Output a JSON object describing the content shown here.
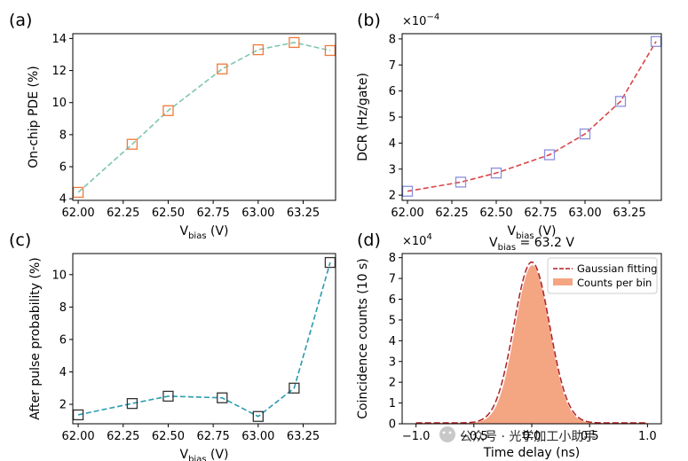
{
  "watermark": "公众号 · 光学加工小助手",
  "chart_data": [
    {
      "type": "line",
      "panel": "(a)",
      "title": "",
      "xlabel": "V",
      "xlabel_sub": "bias",
      "xlabel_unit": " (V)",
      "ylabel": "On-chip PDE (%)",
      "xlim": [
        61.97,
        63.43
      ],
      "ylim": [
        3.9,
        14.3
      ],
      "xticks": [
        62.0,
        62.25,
        62.5,
        62.75,
        63.0,
        63.25
      ],
      "xtick_labels": [
        "62.00",
        "62.25",
        "62.50",
        "62.75",
        "63.00",
        "63.25"
      ],
      "yticks": [
        4,
        6,
        8,
        10,
        12,
        14
      ],
      "ytick_labels": [
        "4",
        "6",
        "8",
        "10",
        "12",
        "14"
      ],
      "x": [
        62.0,
        62.3,
        62.5,
        62.8,
        63.0,
        63.2,
        63.4
      ],
      "y": [
        4.4,
        7.4,
        9.5,
        12.1,
        13.3,
        13.75,
        13.25
      ],
      "line_color": "#7fc6b0",
      "marker_color": "#f07a3a"
    },
    {
      "type": "line",
      "panel": "(b)",
      "title": "",
      "xlabel": "V",
      "xlabel_sub": "bias",
      "xlabel_unit": " (V)",
      "ylabel": "DCR (Hz/gate)",
      "offset_text": "×10",
      "offset_exp": "−4",
      "xlim": [
        61.97,
        63.43
      ],
      "ylim": [
        1.8,
        8.2
      ],
      "xticks": [
        62.0,
        62.25,
        62.5,
        62.75,
        63.0,
        63.25
      ],
      "xtick_labels": [
        "62.00",
        "62.25",
        "62.50",
        "62.75",
        "63.00",
        "63.25"
      ],
      "yticks": [
        2,
        3,
        4,
        5,
        6,
        7,
        8
      ],
      "ytick_labels": [
        "2",
        "3",
        "4",
        "5",
        "6",
        "7",
        "8"
      ],
      "x": [
        62.0,
        62.3,
        62.5,
        62.8,
        63.0,
        63.2,
        63.4
      ],
      "y": [
        2.15,
        2.5,
        2.85,
        3.55,
        4.35,
        5.6,
        7.9
      ],
      "line_color": "#d8474a",
      "marker_color": "#8a8fe0"
    },
    {
      "type": "line",
      "panel": "(c)",
      "title": "",
      "xlabel": "V",
      "xlabel_sub": "bias",
      "xlabel_unit": " (V)",
      "ylabel": "After pulse probability (%)",
      "xlim": [
        61.97,
        63.43
      ],
      "ylim": [
        0.8,
        11.3
      ],
      "xticks": [
        62.0,
        62.25,
        62.5,
        62.75,
        63.0,
        63.25
      ],
      "xtick_labels": [
        "62.00",
        "62.25",
        "62.50",
        "62.75",
        "63.00",
        "63.25"
      ],
      "yticks": [
        2,
        4,
        6,
        8,
        10
      ],
      "ytick_labels": [
        "2",
        "4",
        "6",
        "8",
        "10"
      ],
      "x": [
        62.0,
        62.3,
        62.5,
        62.8,
        63.0,
        63.2,
        63.4
      ],
      "y": [
        1.35,
        2.05,
        2.5,
        2.4,
        1.25,
        3.0,
        10.75
      ],
      "line_color": "#2a9bb0",
      "marker_color": "#333333"
    },
    {
      "type": "area",
      "panel": "(d)",
      "title": "V",
      "title_sub": "bias",
      "title_rest": " = 63.2 V",
      "xlabel": "Time delay (ns)",
      "ylabel": "Coincidence counts (10 s)",
      "offset_text": "×10",
      "offset_exp": "4",
      "xlim": [
        -1.12,
        1.12
      ],
      "ylim": [
        0,
        8.2
      ],
      "xticks": [
        -1.0,
        -0.5,
        0.0,
        0.5,
        1.0
      ],
      "xtick_labels": [
        "−1.0",
        "−0.5",
        "0.0",
        "0.5",
        "1.0"
      ],
      "yticks": [
        0,
        1,
        2,
        3,
        4,
        5,
        6,
        7,
        8
      ],
      "ytick_labels": [
        "0",
        "1",
        "2",
        "3",
        "4",
        "5",
        "6",
        "7",
        "8"
      ],
      "legend": [
        "Gaussian fitting",
        "Counts per bin"
      ],
      "legend_position": "top-right",
      "gaussian": {
        "amplitude": 7.75,
        "center": 0.0,
        "sigma": 0.155,
        "baseline": 0.04
      },
      "counts": {
        "amplitude": 7.6,
        "center": 0.005,
        "sigma": 0.148,
        "baseline": 0.04
      },
      "x_range": [
        -1.0,
        1.0
      ],
      "line_color": "#b01e24",
      "fill_color": "#f4a582"
    }
  ]
}
